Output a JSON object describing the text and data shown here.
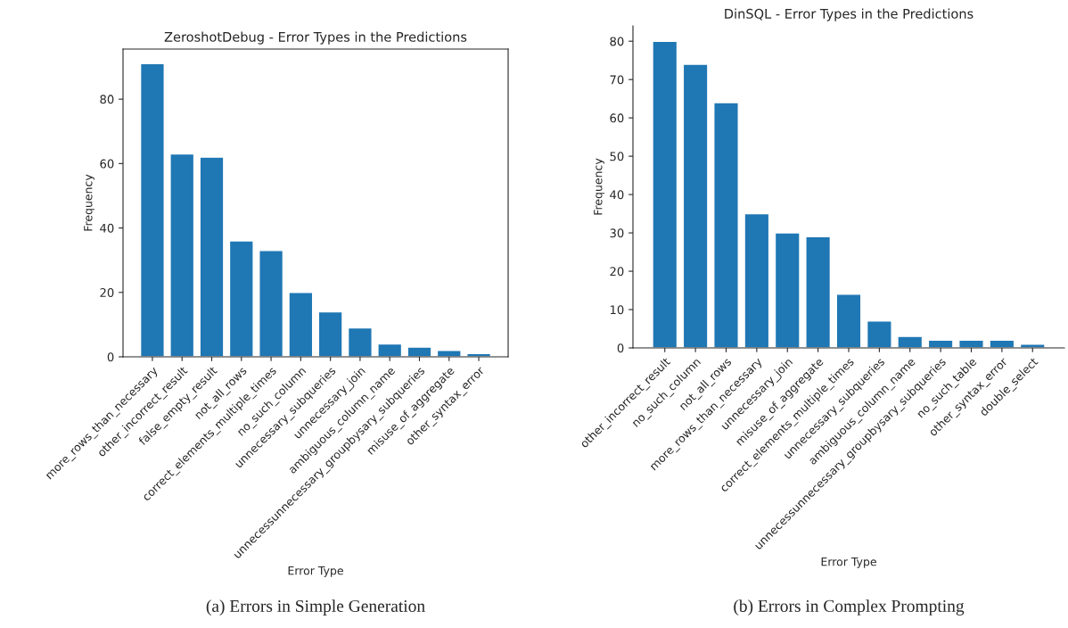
{
  "chart_data": [
    {
      "type": "bar",
      "title": "ZeroshotDebug - Error Types in the Predictions",
      "xlabel": "Error Type",
      "ylabel": "Frequency",
      "categories": [
        "more_rows_than_necessary",
        "other_incorrect_result",
        "false_empty_result",
        "not_all_rows",
        "correct_elements_multiple_times",
        "no_such_column",
        "unnecessary_subqueries",
        "unnecessary_join",
        "ambiguous_column_name",
        "unnecessunnecessary_groupbysary_subqueries",
        "misuse_of_aggregate",
        "other_syntax_error"
      ],
      "values": [
        91,
        63,
        62,
        36,
        33,
        20,
        14,
        9,
        4,
        3,
        2,
        1
      ],
      "color": "#1f77b4",
      "ylim": [
        0,
        95.55
      ],
      "yticks": [
        0,
        20,
        40,
        60,
        80
      ],
      "grid": false,
      "legend": false,
      "annotations": [
        "(a) Errors in Simple Generation"
      ]
    },
    {
      "type": "bar",
      "title": "DinSQL - Error Types in the Predictions",
      "xlabel": "Error Type",
      "ylabel": "Frequency",
      "categories": [
        "other_incorrect_result",
        "no_such_column",
        "not_all_rows",
        "more_rows_than_necessary",
        "unnecessary_join",
        "misuse_of_aggregate",
        "correct_elements_multiple_times",
        "unnecessary_subqueries",
        "ambiguous_column_name",
        "unnecessunnecessary_groupbysary_subqueries",
        "no_such_table",
        "other_syntax_error",
        "double_select"
      ],
      "values": [
        80,
        74,
        64,
        35,
        30,
        29,
        14,
        7,
        3,
        2,
        2,
        2,
        1
      ],
      "color": "#1f77b4",
      "ylim": [
        0,
        84
      ],
      "yticks": [
        0,
        10,
        20,
        30,
        40,
        50,
        60,
        70,
        80
      ],
      "grid": false,
      "legend": false,
      "annotations": [
        "(b) Errors in Complex Prompting"
      ]
    }
  ]
}
